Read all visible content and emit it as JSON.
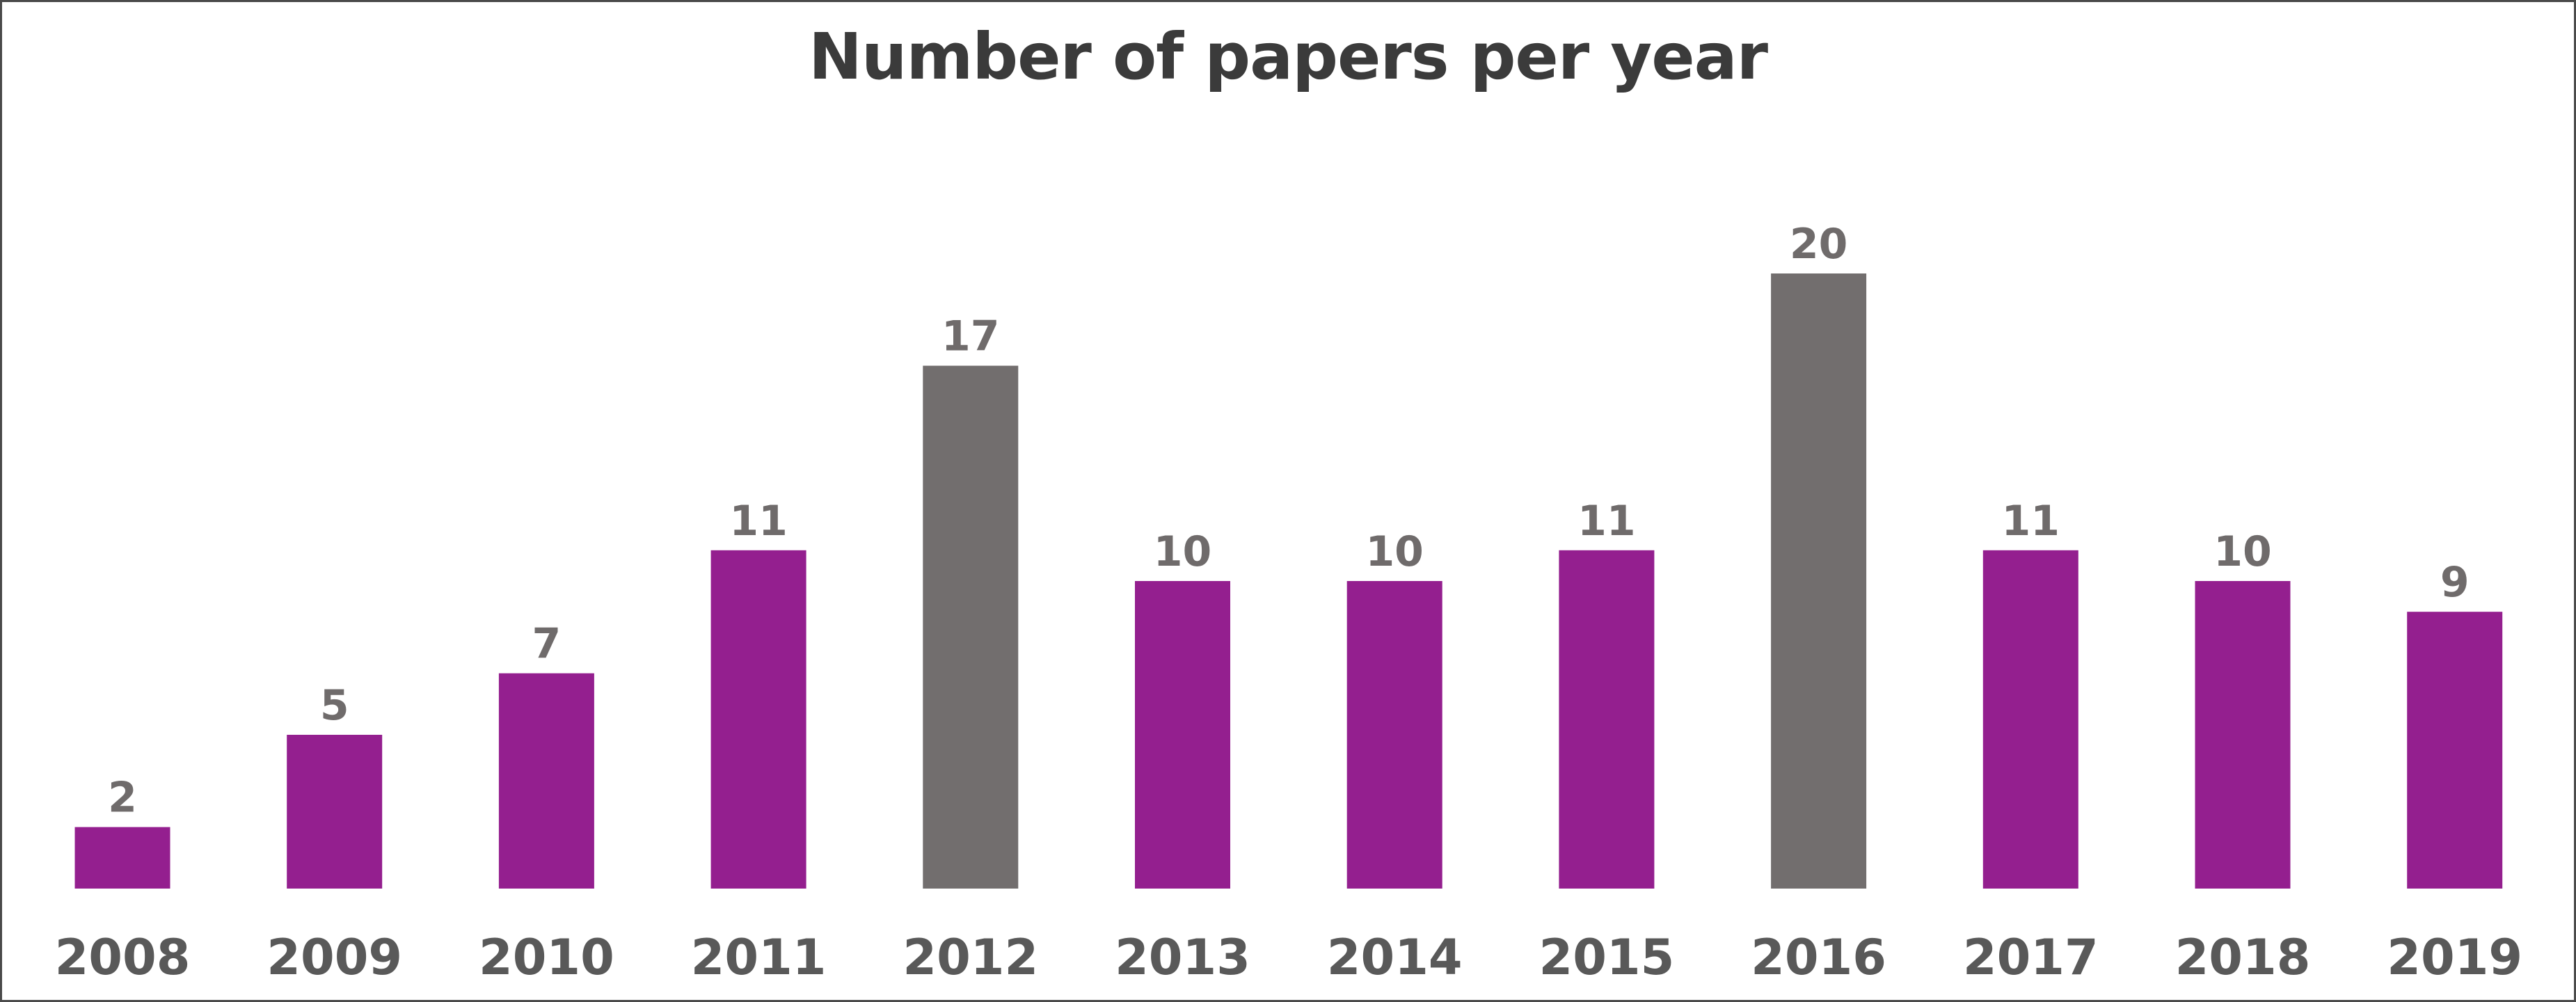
{
  "chart_data": {
    "type": "bar",
    "title": "Number of papers per year",
    "xlabel": "",
    "ylabel": "",
    "categories": [
      "2008",
      "2009",
      "2010",
      "2011",
      "2012",
      "2013",
      "2014",
      "2015",
      "2016",
      "2017",
      "2018",
      "2019"
    ],
    "values": [
      2,
      5,
      7,
      11,
      17,
      10,
      10,
      11,
      20,
      11,
      10,
      9
    ],
    "data_labels": [
      "2",
      "5",
      "7",
      "11",
      "17",
      "10",
      "10",
      "11",
      "20",
      "11",
      "10",
      "9"
    ],
    "ylim": [
      0,
      20
    ],
    "grid": false,
    "legend": "none",
    "colors": {
      "default_bar": "#941f8f",
      "highlight_bar": "#726e6e",
      "highlighted_categories": [
        "2012",
        "2016"
      ]
    }
  }
}
